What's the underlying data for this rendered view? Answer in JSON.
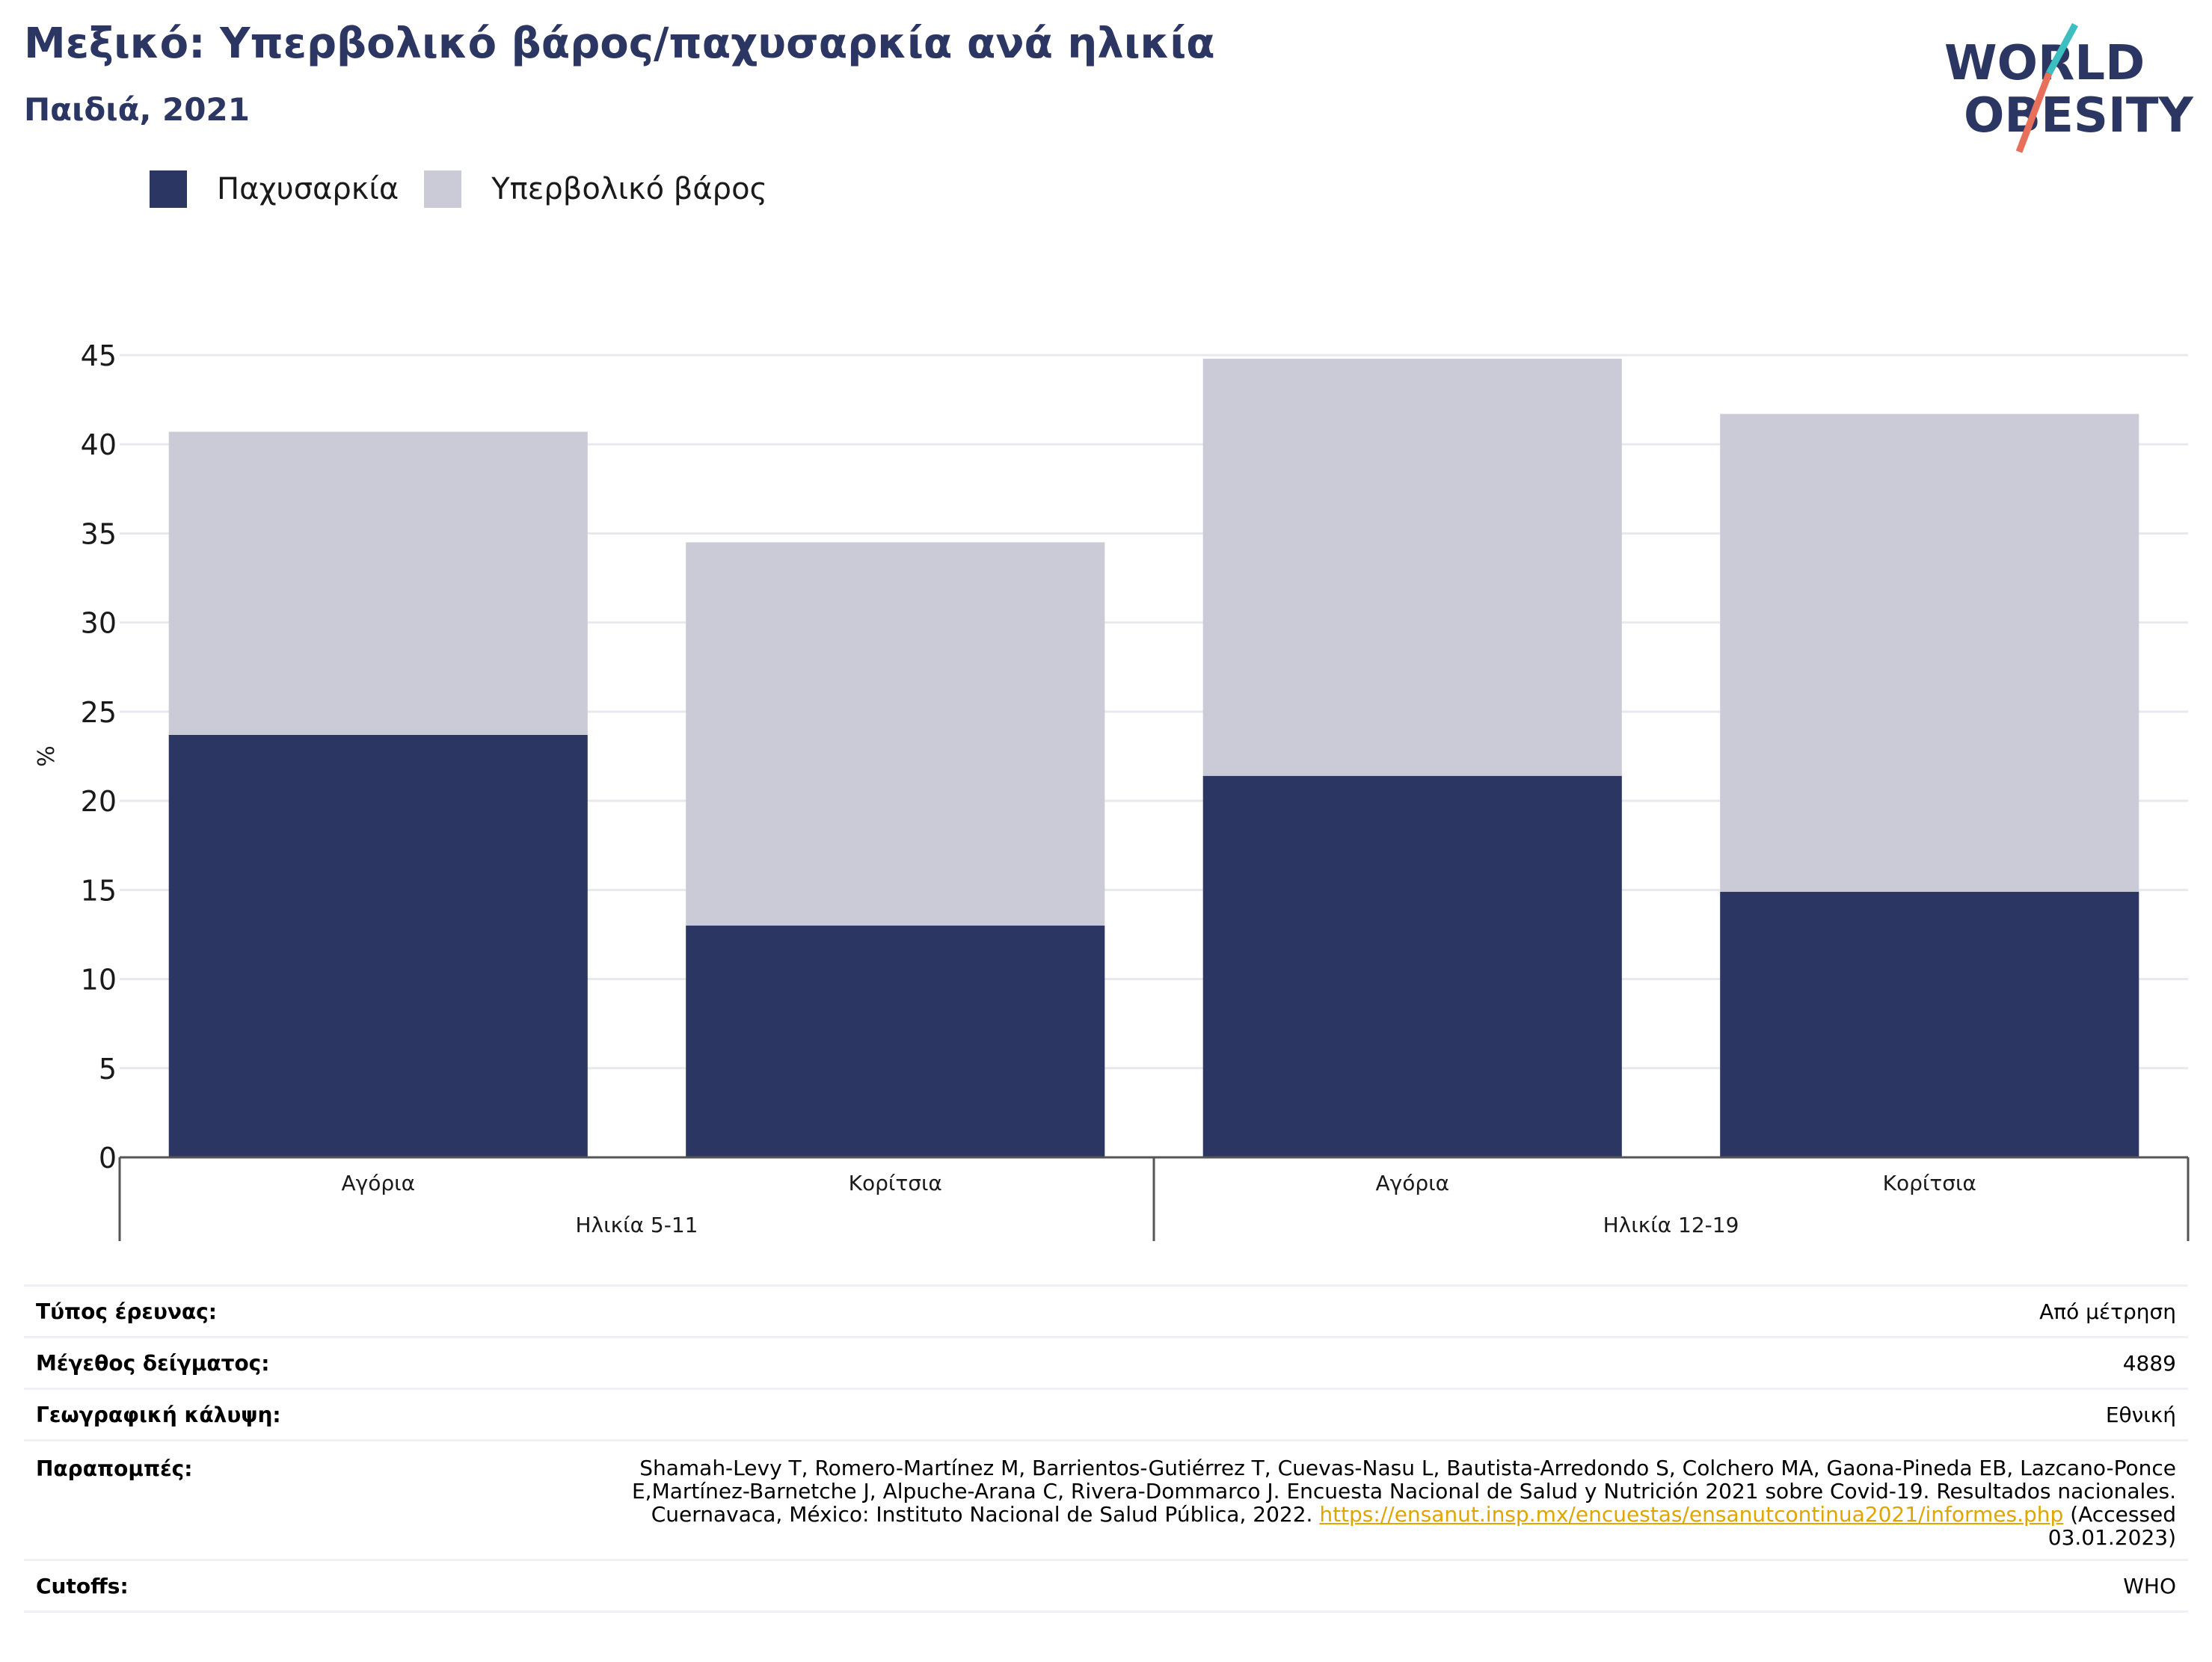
{
  "header": {
    "title": "Μεξικό: Υπερβολικό βάρος/παχυσαρκία ανά ηλικία",
    "subtitle": "Παιδιά, 2021"
  },
  "logo": {
    "line1": "WORLD",
    "line2": "OBESITY"
  },
  "colors": {
    "title": "#2b3663",
    "obesity": "#2b3663",
    "overweight": "#cacbd7",
    "grid": "#e8e9ee",
    "link": "#e0a500",
    "logo_teal": "#3bbfc1",
    "logo_coral": "#e8705a"
  },
  "chart_data": {
    "type": "bar",
    "stacked": true,
    "ylabel": "%",
    "ylim": [
      0,
      45
    ],
    "yticks": [
      0,
      5,
      10,
      15,
      20,
      25,
      30,
      35,
      40,
      45
    ],
    "grid": true,
    "legend_position": "top-left",
    "groups": [
      {
        "label": "Ηλικία 5-11",
        "categories": [
          "Αγόρια",
          "Κορίτσια"
        ]
      },
      {
        "label": "Ηλικία 12-19",
        "categories": [
          "Αγόρια",
          "Κορίτσια"
        ]
      }
    ],
    "categories": [
      "Αγόρια",
      "Κορίτσια",
      "Αγόρια",
      "Κορίτσια"
    ],
    "series": [
      {
        "name": "Παχυσαρκία",
        "values": [
          23.7,
          13.0,
          21.4,
          14.9
        ]
      },
      {
        "name": "Υπερβολικό βάρος",
        "values": [
          17.0,
          21.5,
          23.4,
          26.8
        ]
      }
    ]
  },
  "meta": {
    "survey_type_label": "Τύπος έρευνας:",
    "survey_type_value": "Από μέτρηση",
    "sample_size_label": "Μέγεθος δείγματος:",
    "sample_size_value": "4889",
    "coverage_label": "Γεωγραφική κάλυψη:",
    "coverage_value": "Εθνική",
    "references_label": "Παραπομπές:",
    "references_text": "Shamah-Levy T, Romero-Martínez M, Barrientos-Gutiérrez T, Cuevas-Nasu L, Bautista-Arredondo S, Colchero MA, Gaona-Pineda EB, Lazcano-Ponce E,Martínez-Barnetche J, Alpuche-Arana C, Rivera-Dommarco J. Encuesta Nacional de Salud y Nutrición 2021 sobre Covid-19. Resultados nacionales. Cuernavaca, México: Instituto Nacional de Salud Pública, 2022.",
    "references_link": "https://ensanut.insp.mx/encuestas/ensanutcontinua2021/informes.php",
    "references_accessed": " (Accessed 03.01.2023)",
    "cutoffs_label": "Cutoffs:",
    "cutoffs_value": "WHO"
  }
}
